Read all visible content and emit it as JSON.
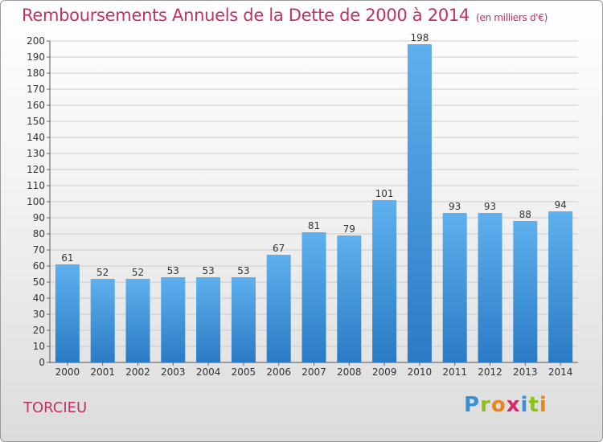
{
  "title": "Remboursements Annuels de la Dette de 2000 à 2014",
  "subtitle": "(en milliers d'€)",
  "commune": "TORCIEU",
  "logo": {
    "letters": [
      "P",
      "r",
      "o",
      "x",
      "i",
      "t",
      "i"
    ],
    "colors": [
      "#3a8fd6",
      "#8fc11e",
      "#e8851c",
      "#d62a6b",
      "#3a8fd6",
      "#8fc11e",
      "#e8851c"
    ]
  },
  "colors": {
    "bar_top": "#5eb0ee",
    "bar_bottom": "#2a7bc4",
    "grid": "#cccccc"
  },
  "chart_data": {
    "type": "bar",
    "categories": [
      "2000",
      "2001",
      "2002",
      "2003",
      "2004",
      "2005",
      "2006",
      "2007",
      "2008",
      "2009",
      "2010",
      "2011",
      "2012",
      "2013",
      "2014"
    ],
    "values": [
      61,
      52,
      52,
      53,
      53,
      53,
      67,
      81,
      79,
      101,
      198,
      93,
      93,
      88,
      94
    ],
    "ylim": [
      0,
      200
    ],
    "yticks": [
      0,
      10,
      20,
      30,
      40,
      50,
      60,
      70,
      80,
      90,
      100,
      110,
      120,
      130,
      140,
      150,
      160,
      170,
      180,
      190,
      200
    ],
    "grid": true
  }
}
